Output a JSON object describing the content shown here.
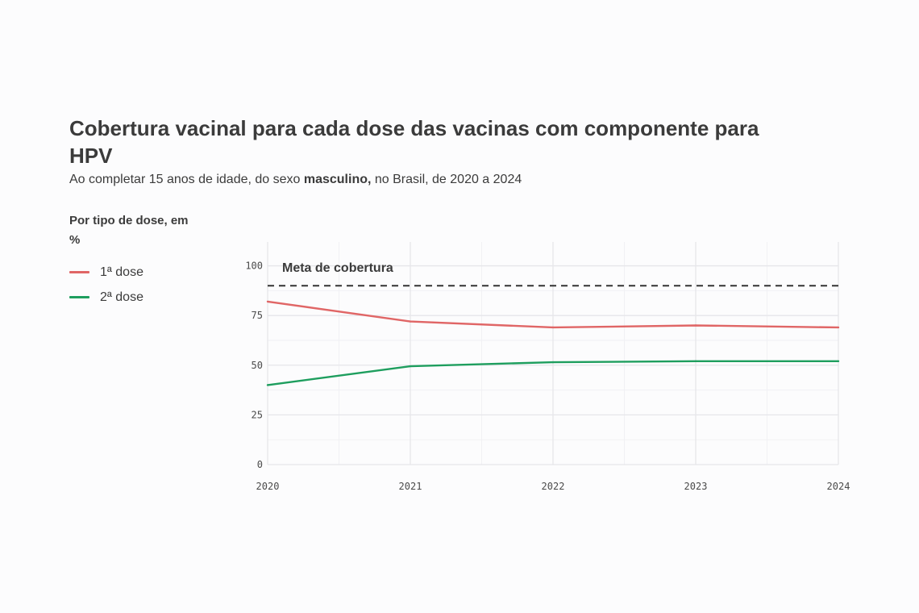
{
  "header": {
    "title": "Cobertura vacinal para cada dose das vacinas com componente para HPV",
    "subtitle_pre": "Ao completar 15 anos de idade, do sexo ",
    "subtitle_bold": "masculino,",
    "subtitle_post": " no Brasil, de 2020 a 2024"
  },
  "legend": {
    "title": "Por tipo de dose, em %",
    "items": [
      {
        "label": "1ª dose",
        "color": "#e06666"
      },
      {
        "label": "2ª dose",
        "color": "#1e9e5e"
      }
    ]
  },
  "chart_data": {
    "type": "line",
    "x": [
      2020,
      2021,
      2022,
      2023,
      2024
    ],
    "x_ticks": [
      "2020",
      "2021",
      "2022",
      "2023",
      "2024"
    ],
    "y_ticks": [
      "0",
      "25",
      "50",
      "75",
      "100"
    ],
    "ylim": [
      0,
      112
    ],
    "grid": true,
    "series": [
      {
        "name": "1ª dose",
        "color": "#e06666",
        "values": [
          82,
          72,
          69,
          70,
          69
        ]
      },
      {
        "name": "2ª dose",
        "color": "#1e9e5e",
        "values": [
          40,
          49.5,
          51.5,
          52,
          52
        ]
      }
    ],
    "target": {
      "value": 90,
      "label": "Meta de cobertura",
      "color": "#333333"
    }
  }
}
